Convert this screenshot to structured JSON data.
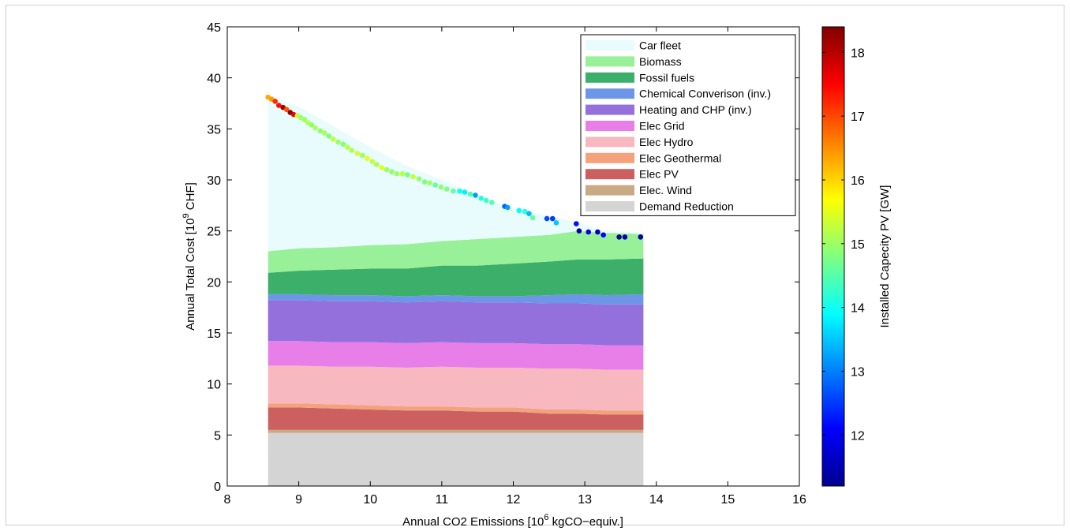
{
  "chart_data": {
    "type": "area",
    "xlabel_main": "Annual CO2 Emissions [10",
    "xlabel_sup": "6",
    "xlabel_tail": " kgCO−equiv.]",
    "ylabel_main": "Annual Total Cost [10",
    "ylabel_sup": "9",
    "ylabel_tail": " CHF]",
    "colorbar_label": "Installed Capecity PV [GW]",
    "xlim": [
      8,
      16
    ],
    "ylim": [
      0,
      45
    ],
    "x_ticks": [
      "8",
      "9",
      "10",
      "11",
      "12",
      "13",
      "14",
      "15",
      "16"
    ],
    "y_ticks": [
      "0",
      "5",
      "10",
      "15",
      "20",
      "25",
      "30",
      "35",
      "40",
      "45"
    ],
    "colorbar_ticks": [
      "12",
      "13",
      "14",
      "15",
      "16",
      "17",
      "18"
    ],
    "colorbar_range": [
      11.2,
      18.4
    ],
    "legend_position": "top-right",
    "x": [
      8.57,
      9.0,
      9.5,
      10.0,
      10.5,
      11.0,
      11.5,
      12.0,
      12.5,
      12.9,
      13.3,
      13.82
    ],
    "series": [
      {
        "name": "Demand Reduction",
        "color": "#d4d4d4",
        "values": [
          5.2,
          5.2,
          5.2,
          5.2,
          5.2,
          5.2,
          5.2,
          5.2,
          5.2,
          5.2,
          5.2,
          5.2
        ]
      },
      {
        "name": "Elec. Wind",
        "color": "#c8aa85",
        "values": [
          0.3,
          0.3,
          0.3,
          0.3,
          0.3,
          0.3,
          0.3,
          0.3,
          0.3,
          0.3,
          0.3,
          0.3
        ]
      },
      {
        "name": "Elec PV",
        "color": "#cc6060",
        "values": [
          2.2,
          2.2,
          2.1,
          2.0,
          1.9,
          1.9,
          1.8,
          1.8,
          1.6,
          1.6,
          1.5,
          1.5
        ]
      },
      {
        "name": "Elec Geothermal",
        "color": "#f4a27c",
        "values": [
          0.4,
          0.4,
          0.4,
          0.4,
          0.4,
          0.4,
          0.4,
          0.4,
          0.4,
          0.4,
          0.4,
          0.4
        ]
      },
      {
        "name": "Elec Hydro",
        "color": "#f7b8c0",
        "values": [
          3.7,
          3.7,
          3.7,
          3.8,
          3.8,
          3.9,
          3.9,
          3.9,
          4.0,
          4.0,
          4.0,
          4.0
        ]
      },
      {
        "name": "Elec Grid",
        "color": "#e87ee8",
        "values": [
          2.4,
          2.4,
          2.4,
          2.4,
          2.4,
          2.4,
          2.4,
          2.4,
          2.4,
          2.4,
          2.4,
          2.4
        ]
      },
      {
        "name": "Heating and CHP (inv.)",
        "color": "#9370db",
        "values": [
          4.0,
          4.0,
          4.0,
          4.0,
          4.0,
          4.0,
          4.0,
          4.0,
          4.0,
          4.0,
          4.0,
          4.0
        ]
      },
      {
        "name": "Chemical Converison (inv.)",
        "color": "#6e96e8",
        "values": [
          0.6,
          0.6,
          0.6,
          0.6,
          0.6,
          0.6,
          0.6,
          0.6,
          0.8,
          0.9,
          0.9,
          1.0
        ]
      },
      {
        "name": "Fossil fuels",
        "color": "#3caf6a",
        "values": [
          2.1,
          2.3,
          2.5,
          2.6,
          2.7,
          2.9,
          3.0,
          3.2,
          3.3,
          3.4,
          3.5,
          3.5
        ]
      },
      {
        "name": "Biomass",
        "color": "#98f098",
        "values": [
          2.1,
          2.2,
          2.2,
          2.3,
          2.4,
          2.4,
          2.6,
          2.6,
          2.6,
          2.8,
          2.6,
          2.4
        ]
      },
      {
        "name": "Car fleet",
        "color": "#e8fbfd",
        "values": [
          15.1,
          13.9,
          11.8,
          9.6,
          7.7,
          6.0,
          4.3,
          2.8,
          1.9,
          0.8,
          0.2,
          0.1
        ]
      }
    ],
    "scatter_points": [
      [
        8.57,
        38.1,
        16.3
      ],
      [
        8.62,
        37.9,
        16.4
      ],
      [
        8.67,
        37.7,
        17.2
      ],
      [
        8.72,
        37.3,
        17.4
      ],
      [
        8.78,
        37.1,
        18.2
      ],
      [
        8.83,
        36.9,
        16.9
      ],
      [
        8.88,
        36.6,
        18.3
      ],
      [
        8.93,
        36.4,
        17.6
      ],
      [
        8.98,
        36.3,
        15.3
      ],
      [
        9.03,
        36.1,
        15.0
      ],
      [
        9.08,
        35.9,
        15.0
      ],
      [
        9.13,
        35.6,
        15.2
      ],
      [
        9.18,
        35.4,
        14.9
      ],
      [
        9.23,
        35.1,
        15.1
      ],
      [
        9.3,
        34.8,
        14.9
      ],
      [
        9.36,
        34.6,
        15.1
      ],
      [
        9.42,
        34.3,
        14.8
      ],
      [
        9.48,
        34.0,
        15.3
      ],
      [
        9.55,
        33.7,
        15.0
      ],
      [
        9.62,
        33.5,
        14.8
      ],
      [
        9.68,
        33.2,
        15.2
      ],
      [
        9.74,
        32.9,
        15.1
      ],
      [
        9.82,
        32.6,
        15.4
      ],
      [
        9.89,
        32.4,
        15.0
      ],
      [
        9.96,
        32.1,
        15.5
      ],
      [
        10.03,
        31.8,
        15.3
      ],
      [
        10.09,
        31.5,
        15.1
      ],
      [
        10.16,
        31.2,
        15.5
      ],
      [
        10.23,
        31.0,
        15.0
      ],
      [
        10.3,
        30.8,
        14.9
      ],
      [
        10.37,
        30.6,
        15.0
      ],
      [
        10.45,
        30.6,
        15.2
      ],
      [
        10.52,
        30.5,
        14.7
      ],
      [
        10.6,
        30.3,
        15.3
      ],
      [
        10.68,
        30.1,
        14.9
      ],
      [
        10.76,
        29.8,
        14.8
      ],
      [
        10.83,
        29.7,
        15.0
      ],
      [
        10.91,
        29.5,
        14.6
      ],
      [
        10.99,
        29.3,
        14.9
      ],
      [
        11.07,
        29.1,
        14.8
      ],
      [
        11.16,
        28.9,
        14.6
      ],
      [
        11.25,
        28.9,
        14.0
      ],
      [
        11.32,
        28.8,
        13.8
      ],
      [
        11.4,
        28.6,
        14.4
      ],
      [
        11.47,
        28.5,
        13.2
      ],
      [
        11.55,
        28.2,
        14.1
      ],
      [
        11.62,
        28.0,
        14.3
      ],
      [
        11.7,
        27.8,
        14.5
      ],
      [
        11.88,
        27.4,
        12.8
      ],
      [
        11.92,
        27.3,
        13.2
      ],
      [
        12.08,
        27.0,
        13.9
      ],
      [
        12.16,
        26.9,
        14.2
      ],
      [
        12.22,
        26.7,
        13.4
      ],
      [
        12.27,
        26.3,
        14.6
      ],
      [
        12.47,
        26.2,
        12.6
      ],
      [
        12.55,
        26.2,
        12.5
      ],
      [
        12.6,
        25.8,
        13.5
      ],
      [
        12.88,
        25.7,
        12.2
      ],
      [
        12.92,
        25.0,
        11.4
      ],
      [
        13.05,
        24.9,
        12.0
      ],
      [
        13.18,
        24.9,
        11.6
      ],
      [
        13.26,
        24.6,
        12.1
      ],
      [
        13.48,
        24.4,
        11.3
      ],
      [
        13.56,
        24.4,
        11.6
      ],
      [
        13.78,
        24.4,
        11.4
      ]
    ]
  }
}
